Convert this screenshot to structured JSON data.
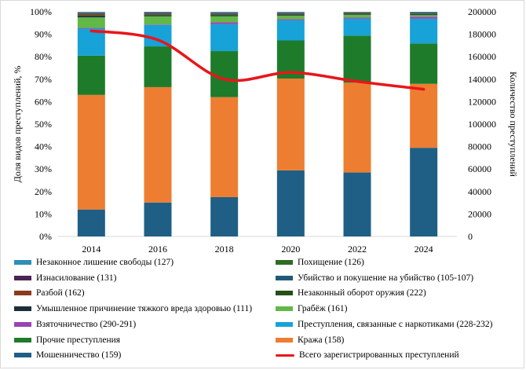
{
  "chart_data": {
    "type": "bar",
    "stacked": true,
    "categories": [
      "2014",
      "2016",
      "2018",
      "2020",
      "2022",
      "2024"
    ],
    "ylabel": "Доля видов преступлений, %",
    "y2label": "Количество преступлений",
    "ylim": [
      0,
      100
    ],
    "y2lim": [
      0,
      200000
    ],
    "yticks": [
      "0%",
      "10%",
      "20%",
      "30%",
      "40%",
      "50%",
      "60%",
      "70%",
      "80%",
      "90%",
      "100%"
    ],
    "y2ticks": [
      "0",
      "20000",
      "40000",
      "60000",
      "80000",
      "100000",
      "120000",
      "140000",
      "160000",
      "180000",
      "200000"
    ],
    "grid": false,
    "legend_position": "bottom",
    "series": [
      {
        "name": "Мошенничество (159)",
        "color": "#1f5f85",
        "values": [
          12,
          15,
          17.5,
          29.5,
          28.5,
          39.5
        ]
      },
      {
        "name": "Кража (158)",
        "color": "#ed7d31",
        "values": [
          51,
          51,
          44.5,
          41,
          40,
          28.5
        ]
      },
      {
        "name": "Прочие преступления",
        "color": "#1e7b2a",
        "values": [
          17.5,
          18,
          20.5,
          17,
          21,
          18
        ]
      },
      {
        "name": "Преступления, связанные с наркотиками (228-232)",
        "color": "#17a2d8",
        "values": [
          12,
          9.5,
          12,
          9,
          7.5,
          11
        ]
      },
      {
        "name": "Взяточничество (290-291)",
        "color": "#9b42b5",
        "values": [
          0.3,
          0.2,
          0.8,
          0.5,
          0.5,
          0.9
        ]
      },
      {
        "name": "Грабёж (161)",
        "color": "#62b846",
        "values": [
          4.7,
          3.6,
          2.7,
          1.5,
          1.3,
          0.7
        ]
      },
      {
        "name": "Умышленное причинение тяжкого вреда здоровью (111)",
        "color": "#1b2f3a",
        "values": [
          0.6,
          0.5,
          0.5,
          0.3,
          0.3,
          0.3
        ]
      },
      {
        "name": "Незаконный оборот оружия (222)",
        "color": "#274e13",
        "values": [
          0.4,
          0.4,
          0.4,
          0.4,
          0.3,
          0.3
        ]
      },
      {
        "name": "Разбой (162)",
        "color": "#8b3a1e",
        "values": [
          0.6,
          0.3,
          0.2,
          0.2,
          0.2,
          0.1
        ]
      },
      {
        "name": "Убийство и покушение на убийство (105-107)",
        "color": "#215a78",
        "values": [
          0.3,
          0.3,
          0.3,
          0.3,
          0.2,
          0.3
        ]
      },
      {
        "name": "Изнасилование (131)",
        "color": "#4a2454",
        "values": [
          0.2,
          0.2,
          0.2,
          0.2,
          0.1,
          0.2
        ]
      },
      {
        "name": "Похищение (126)",
        "color": "#2e6b24",
        "values": [
          0.1,
          0.1,
          0.1,
          0.1,
          0.1,
          0.1
        ]
      },
      {
        "name": "Незаконное лишение свободы (127)",
        "color": "#2c8fb8",
        "values": [
          0.3,
          0.2,
          0.3,
          0.3,
          0.1,
          0.2
        ]
      }
    ],
    "line_series": {
      "name": "Всего зарегистрированных преступлений",
      "color": "#e8161b",
      "axis": "right",
      "values": [
        183000,
        175000,
        140000,
        146000,
        138000,
        131000
      ]
    }
  },
  "legend": {
    "items": [
      {
        "label": "Незаконное лишение свободы (127)",
        "color": "#2c8fb8",
        "kind": "bar"
      },
      {
        "label": "Похищение (126)",
        "color": "#2e6b24",
        "kind": "bar"
      },
      {
        "label": "Изнасилование (131)",
        "color": "#4a2454",
        "kind": "bar"
      },
      {
        "label": "Убийство и покушение на убийство (105-107)",
        "color": "#215a78",
        "kind": "bar"
      },
      {
        "label": "Разбой (162)",
        "color": "#8b3a1e",
        "kind": "bar"
      },
      {
        "label": "Незаконный оборот оружия (222)",
        "color": "#274e13",
        "kind": "bar"
      },
      {
        "label": "Умышленное причинение тяжкого вреда здоровью (111)",
        "color": "#1b2f3a",
        "kind": "bar"
      },
      {
        "label": "Грабёж (161)",
        "color": "#62b846",
        "kind": "bar"
      },
      {
        "label": "Взяточничество (290-291)",
        "color": "#9b42b5",
        "kind": "bar"
      },
      {
        "label": "Преступления, связанные с наркотиками (228-232)",
        "color": "#17a2d8",
        "kind": "bar"
      },
      {
        "label": "Прочие преступления",
        "color": "#1e7b2a",
        "kind": "bar"
      },
      {
        "label": "Кража (158)",
        "color": "#ed7d31",
        "kind": "bar"
      },
      {
        "label": "Мошенничество (159)",
        "color": "#1f5f85",
        "kind": "bar"
      },
      {
        "label": "Всего зарегистрированных преступлений",
        "color": "#e8161b",
        "kind": "line"
      }
    ]
  }
}
